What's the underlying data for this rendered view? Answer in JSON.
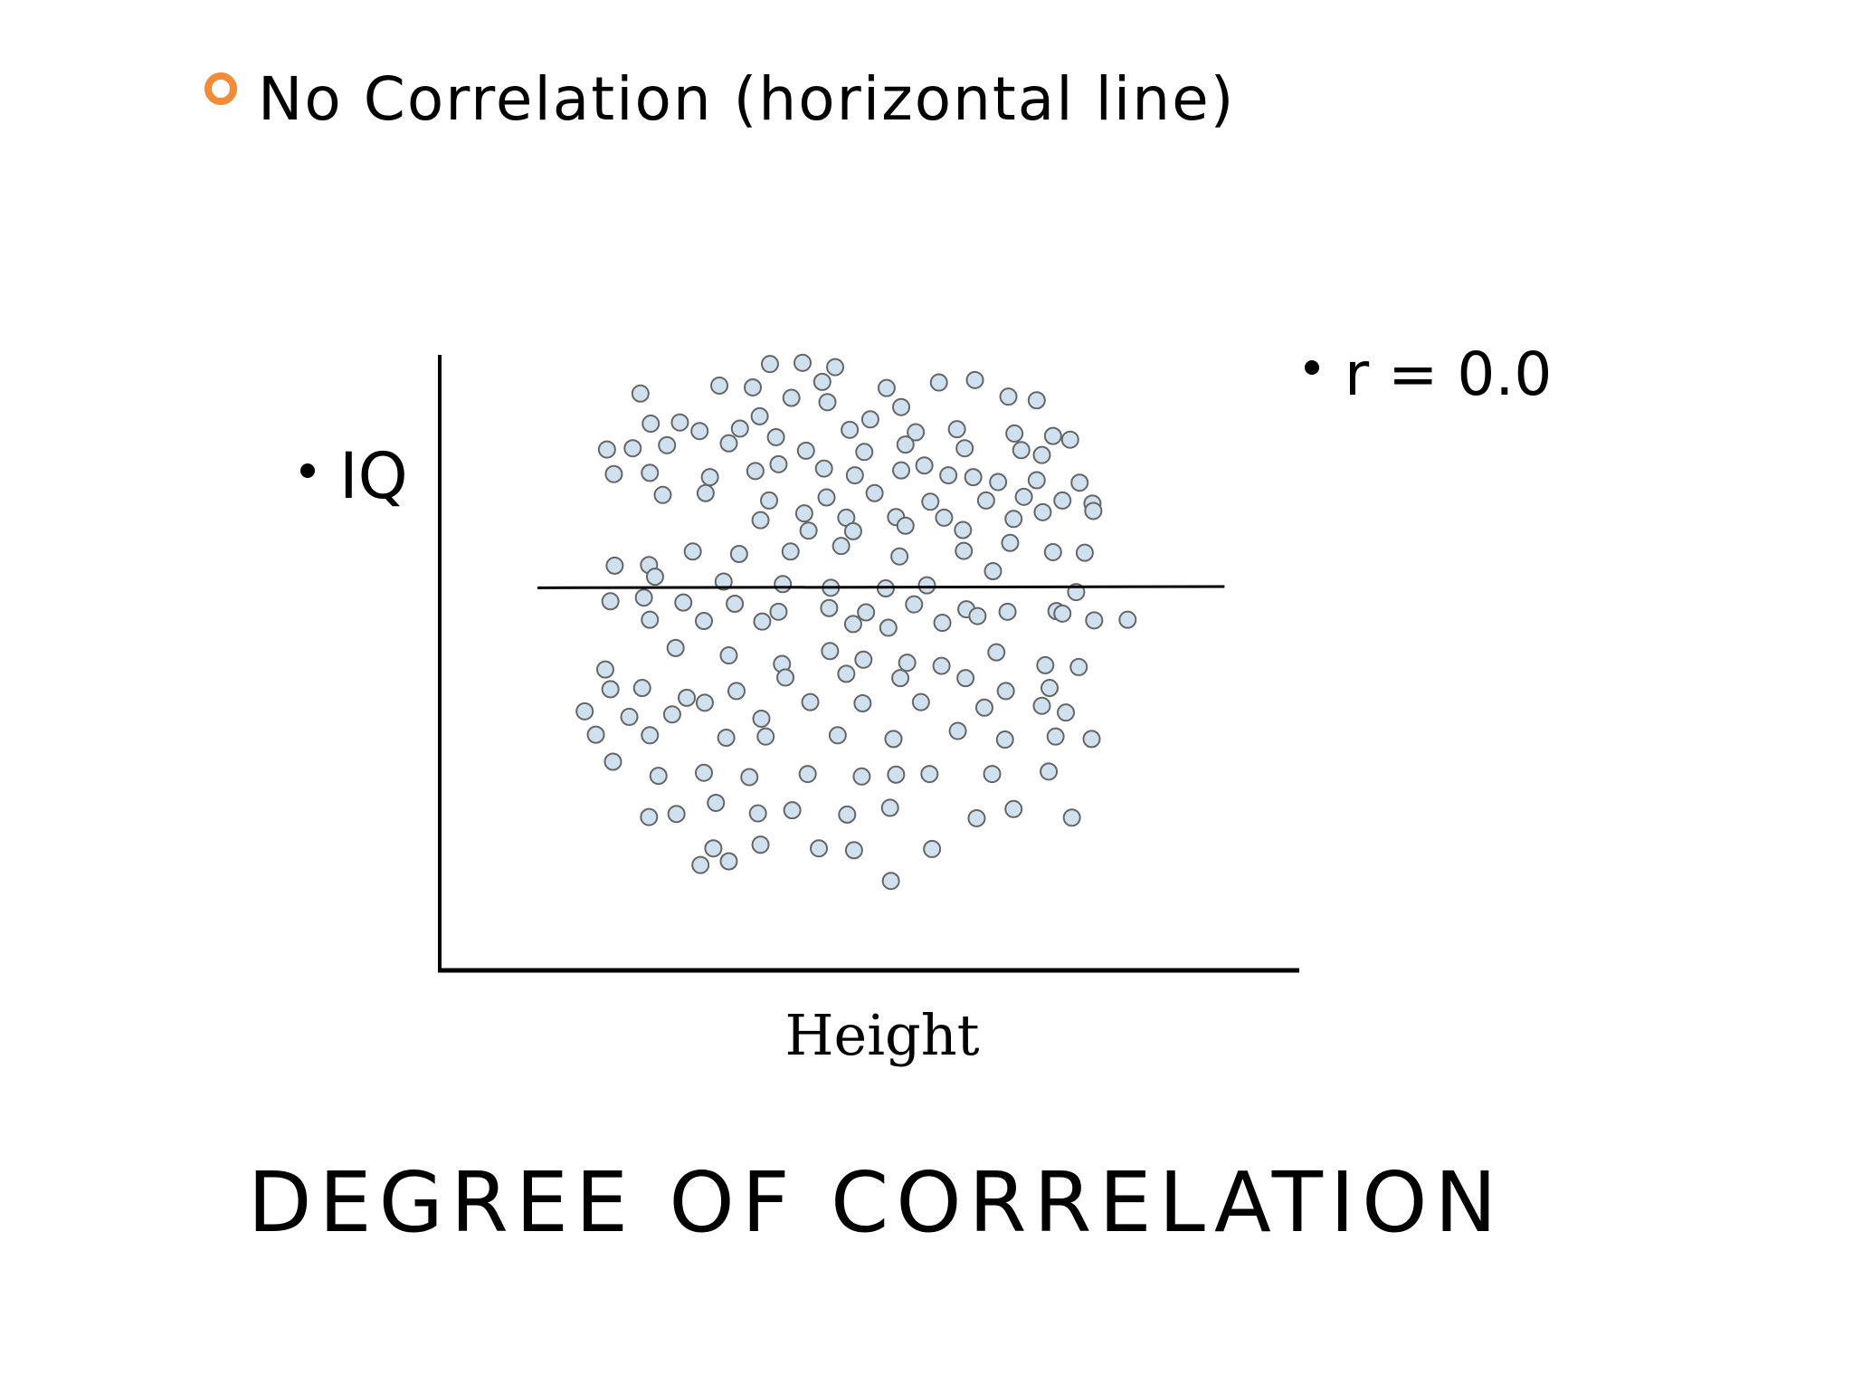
{
  "chart_data": {
    "type": "scatter",
    "title": "No Correlation (horizontal line)",
    "y_label": "IQ",
    "x_label": "Height",
    "annotation": "r = 0.0",
    "footer": "DEGREE OF CORRELATION",
    "color": "#cfe0ee",
    "xlim": [
      0,
      100
    ],
    "ylim": [
      0,
      100
    ],
    "x": [
      38.5,
      42.3,
      46.1,
      44.6,
      36.5,
      32.6,
      23.4,
      52.1,
      58.2,
      62.4,
      66.3,
      69.6,
      53.8,
      45.2,
      41,
      37.3,
      28,
      24.6,
      30.3,
      35,
      39.2,
      47.8,
      50.2,
      55.5,
      60.3,
      67,
      71.5,
      73.5,
      19.5,
      22.5,
      26.5,
      33.7,
      42.7,
      49.5,
      54.3,
      61.2,
      67.8,
      70.2,
      20.3,
      24.5,
      31.5,
      36.8,
      39.5,
      44.8,
      48.4,
      53.8,
      56.5,
      59.3,
      62.2,
      65.1,
      69.6,
      74.6,
      26,
      31,
      38.4,
      45.1,
      50.7,
      57.2,
      63.7,
      68.1,
      72.6,
      76.1,
      37.4,
      42.5,
      47.4,
      53.2,
      58.8,
      66.9,
      70.3,
      76.2,
      43,
      48.2,
      54.3,
      61,
      20.4,
      24.4,
      29.5,
      34.9,
      40.9,
      46.8,
      53.6,
      61.1,
      66.5,
      71.5,
      75.2,
      25.1,
      33.1,
      40,
      45.6,
      52,
      56.8,
      64.5,
      74.2,
      19.9,
      23.8,
      28.4,
      34.4,
      39.5,
      45.4,
      49.7,
      55.3,
      61.4,
      66.2,
      71.9,
      76.3,
      80.2,
      24.5,
      30.8,
      37.6,
      48.2,
      52.3,
      58.6,
      62.7,
      72.6,
      19.3,
      27.5,
      33.7,
      39.9,
      45.5,
      49.4,
      54.5,
      58.5,
      64.9,
      70.6,
      74.5,
      19.9,
      23.6,
      28.8,
      34.6,
      40.3,
      47.4,
      53.7,
      61.3,
      66,
      71.1,
      16.9,
      22.1,
      27.1,
      30.9,
      37.5,
      43.2,
      49.3,
      56.1,
      63.5,
      70.2,
      73,
      18.2,
      24.5,
      33.4,
      38,
      46.4,
      52.9,
      60.4,
      65.9,
      71.8,
      76,
      20.2,
      25.5,
      30.8,
      36.1,
      42.9,
      49.2,
      53.2,
      57.1,
      64.4,
      71,
      24.4,
      27.6,
      32.2,
      37.1,
      41.1,
      47.5,
      52.5,
      62.6,
      66.9,
      73.7,
      31.9,
      37.4,
      44.2,
      48.3,
      57.4,
      30.4,
      33.7,
      52.6
    ],
    "values": [
      98.5,
      98.7,
      98,
      95.6,
      94.7,
      95,
      93.7,
      94.6,
      95.5,
      95.9,
      93.2,
      92.6,
      91.5,
      92.3,
      93,
      90,
      89,
      88.8,
      87.6,
      88,
      86.6,
      87.8,
      89.5,
      87.4,
      87.9,
      87.2,
      86.8,
      86.2,
      84.6,
      84.8,
      85.3,
      85.6,
      84.4,
      84.2,
      85.4,
      84.8,
      84.5,
      83.7,
      80.6,
      80.8,
      80.1,
      81.1,
      82.2,
      81.5,
      80.4,
      81.2,
      82,
      80.4,
      80.1,
      79.3,
      79.6,
      79.2,
      77.2,
      77.5,
      76.3,
      76.8,
      77.5,
      76.1,
      76.3,
      76.9,
      76.3,
      75.8,
      73.1,
      74.2,
      73.5,
      73.6,
      73.5,
      73.3,
      74.4,
      74.6,
      71.4,
      71.3,
      72.2,
      71.5,
      65.7,
      65.8,
      68,
      67.6,
      68,
      68.9,
      67.2,
      68.1,
      69.4,
      67.9,
      67.8,
      63.9,
      63.1,
      62.7,
      62.1,
      62,
      62.5,
      64.8,
      61.4,
      59.9,
      60.5,
      59.7,
      59.5,
      58.2,
      58.8,
      58.1,
      59.4,
      58.6,
      58.2,
      58.3,
      56.8,
      56.9,
      56.9,
      56.7,
      56.6,
      56.2,
      55.6,
      56.4,
      57.5,
      57.9,
      48.8,
      52.3,
      51.1,
      49.7,
      51.8,
      50.4,
      49.9,
      49.4,
      51.6,
      49.5,
      49.2,
      45.6,
      45.8,
      44.2,
      45.3,
      47.5,
      48.1,
      47.4,
      47.4,
      45.3,
      45.8,
      42,
      41.1,
      41.5,
      43.4,
      40.8,
      43.5,
      43.3,
      43.5,
      42.6,
      42.9,
      41.8,
      38.2,
      38.1,
      37.7,
      37.9,
      38.1,
      37.5,
      38.8,
      37.4,
      37.9,
      37.5,
      33.8,
      31.5,
      32,
      31.3,
      31.8,
      31.4,
      31.7,
      31.8,
      31.8,
      32.2,
      24.8,
      25.3,
      27.1,
      25.4,
      25.9,
      25.2,
      26.3,
      24.6,
      26.1,
      24.7,
      19.7,
      20.3,
      19.7,
      19.4,
      19.6,
      17,
      17.6,
      14.4
    ],
    "trend_line": {
      "x": [
        11.4,
        91.5
      ],
      "values": [
        62.1,
        62.3
      ]
    }
  }
}
